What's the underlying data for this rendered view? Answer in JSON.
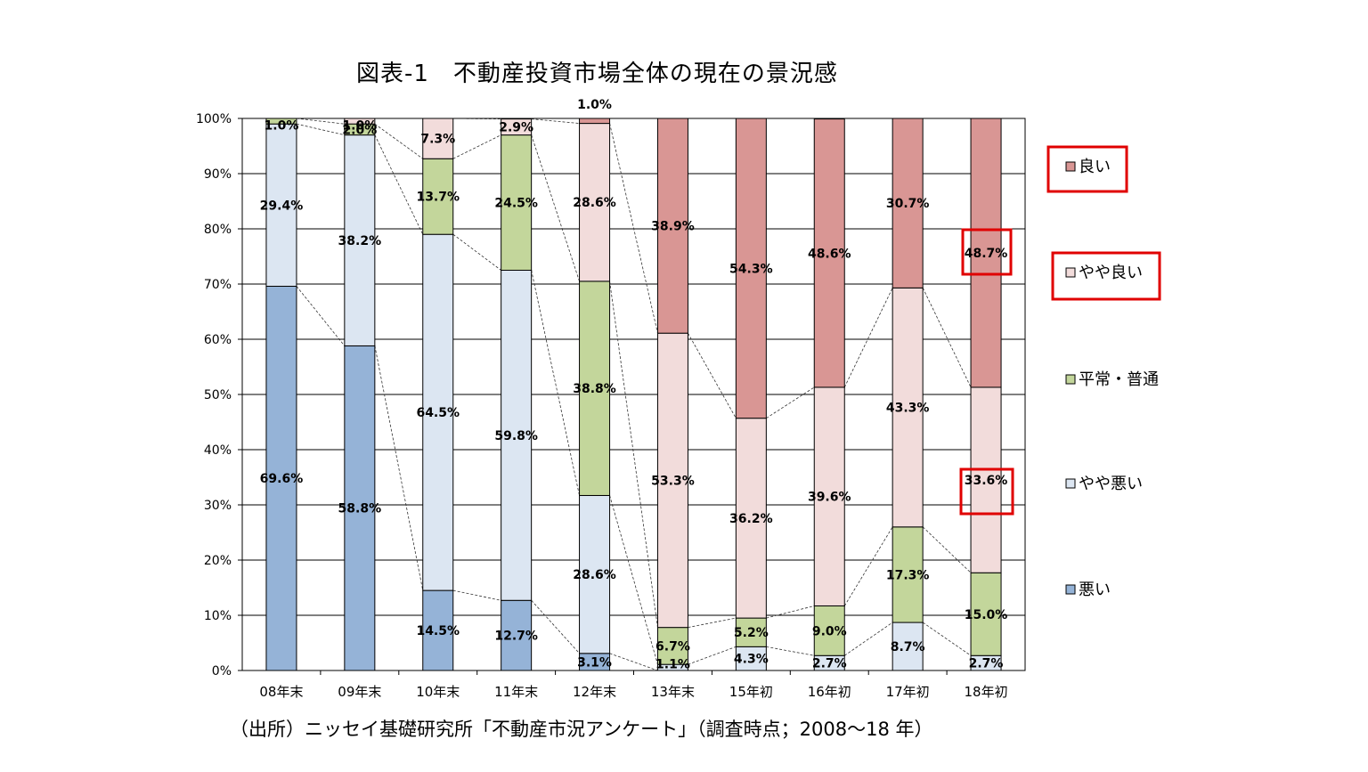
{
  "title": "図表-1　不動産投資市場全体の現在の景況感",
  "source": "（出所）ニッセイ基礎研究所「不動産市況アンケート」（調査時点；2008～18 年）",
  "chart_data": {
    "type": "bar",
    "stacked": true,
    "categories": [
      "08年末",
      "09年末",
      "10年末",
      "11年末",
      "12年末",
      "13年末",
      "15年初",
      "16年初",
      "17年初",
      "18年初"
    ],
    "y_ticks": [
      "0%",
      "10%",
      "20%",
      "30%",
      "40%",
      "50%",
      "60%",
      "70%",
      "80%",
      "90%",
      "100%"
    ],
    "ylim": [
      0,
      100
    ],
    "grid": true,
    "legend_position": "right",
    "series": [
      {
        "name": "悪い",
        "color": "#95b3d7",
        "values": [
          69.6,
          58.8,
          14.5,
          12.7,
          3.1,
          0,
          0,
          0,
          0,
          0
        ],
        "labels": [
          "69.6%",
          "58.8%",
          "14.5%",
          "12.7%",
          "3.1%",
          "",
          "",
          "",
          "",
          ""
        ]
      },
      {
        "name": "やや悪い",
        "color": "#dce6f2",
        "values": [
          29.4,
          38.2,
          64.5,
          59.8,
          28.6,
          1.1,
          4.3,
          2.7,
          8.7,
          2.7
        ],
        "labels": [
          "29.4%",
          "38.2%",
          "64.5%",
          "59.8%",
          "28.6%",
          "1.1%",
          "4.3%",
          "2.7%",
          "8.7%",
          "2.7%"
        ]
      },
      {
        "name": "平常・普通",
        "color": "#c3d69b",
        "values": [
          1.0,
          2.0,
          13.7,
          24.5,
          38.8,
          6.7,
          5.2,
          9.0,
          17.3,
          15.0
        ],
        "labels": [
          "1.0%",
          "2.0%",
          "13.7%",
          "24.5%",
          "38.8%",
          "6.7%",
          "5.2%",
          "9.0%",
          "17.3%",
          "15.0%"
        ]
      },
      {
        "name": "やや良い",
        "color": "#f2dcdb",
        "values": [
          0,
          1.0,
          7.3,
          2.9,
          28.6,
          53.3,
          36.2,
          39.6,
          43.3,
          33.6
        ],
        "labels": [
          "",
          "1.0%",
          "7.3%",
          "2.9%",
          "28.6%",
          "53.3%",
          "36.2%",
          "39.6%",
          "43.3%",
          "33.6%"
        ]
      },
      {
        "name": "良い",
        "color": "#d99694",
        "values": [
          0,
          0,
          0,
          0,
          1.0,
          38.9,
          54.3,
          48.6,
          30.7,
          48.7
        ],
        "labels": [
          "",
          "",
          "",
          "",
          "1.0%",
          "38.9%",
          "54.3%",
          "48.6%",
          "30.7%",
          "48.7%"
        ]
      }
    ],
    "highlight_color": "#e00000"
  }
}
